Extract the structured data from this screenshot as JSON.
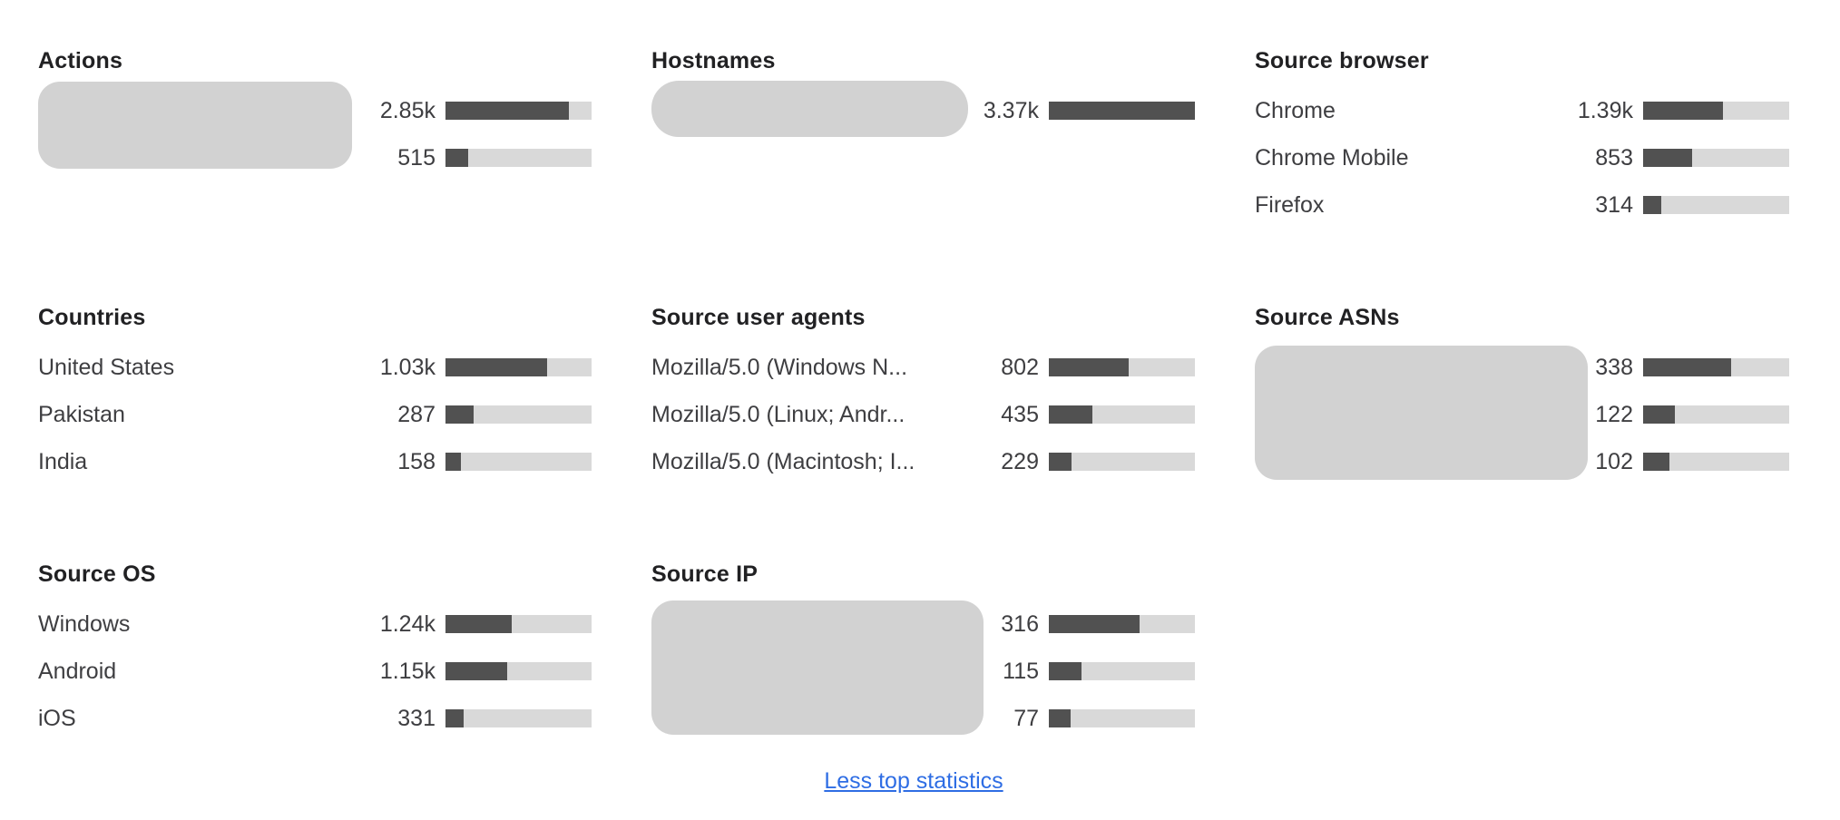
{
  "colors": {
    "background": "#ffffff",
    "title_text": "#212123",
    "label_text": "#3e3e41",
    "bar_fill": "#515151",
    "bar_track": "#d9d9d9",
    "redaction_box": "#d2d2d2",
    "link": "#2e6de4"
  },
  "footer": {
    "toggle_link_label": "Less top statistics"
  },
  "chart_data": [
    {
      "type": "bar",
      "title": "Actions",
      "labels_redacted": true,
      "rows": [
        {
          "label": "",
          "value": 2850,
          "value_display": "2.85k",
          "percent": 84.7
        },
        {
          "label": "",
          "value": 515,
          "value_display": "515",
          "percent": 15.3
        }
      ]
    },
    {
      "type": "bar",
      "title": "Hostnames",
      "labels_redacted": true,
      "rows": [
        {
          "label": "",
          "value": 3370,
          "value_display": "3.37k",
          "percent": 100
        }
      ]
    },
    {
      "type": "bar",
      "title": "Source browser",
      "labels_redacted": false,
      "rows": [
        {
          "label": "Chrome",
          "value": 1390,
          "value_display": "1.39k",
          "percent": 54.4
        },
        {
          "label": "Chrome Mobile",
          "value": 853,
          "value_display": "853",
          "percent": 33.4
        },
        {
          "label": "Firefox",
          "value": 314,
          "value_display": "314",
          "percent": 12.3
        }
      ]
    },
    {
      "type": "bar",
      "title": "Countries",
      "labels_redacted": false,
      "rows": [
        {
          "label": "United States",
          "value": 1030,
          "value_display": "1.03k",
          "percent": 69.8
        },
        {
          "label": "Pakistan",
          "value": 287,
          "value_display": "287",
          "percent": 19.5
        },
        {
          "label": "India",
          "value": 158,
          "value_display": "158",
          "percent": 10.7
        }
      ]
    },
    {
      "type": "bar",
      "title": "Source user agents",
      "labels_redacted": false,
      "rows": [
        {
          "label": "Mozilla/5.0 (Windows N...",
          "value": 802,
          "value_display": "802",
          "percent": 54.7
        },
        {
          "label": "Mozilla/5.0 (Linux; Andr...",
          "value": 435,
          "value_display": "435",
          "percent": 29.7
        },
        {
          "label": "Mozilla/5.0 (Macintosh; I...",
          "value": 229,
          "value_display": "229",
          "percent": 15.6
        }
      ]
    },
    {
      "type": "bar",
      "title": "Source ASNs",
      "labels_redacted": true,
      "rows": [
        {
          "label": "",
          "value": 338,
          "value_display": "338",
          "percent": 60.1
        },
        {
          "label": "",
          "value": 122,
          "value_display": "122",
          "percent": 21.7
        },
        {
          "label": "",
          "value": 102,
          "value_display": "102",
          "percent": 18.1
        }
      ]
    },
    {
      "type": "bar",
      "title": "Source OS",
      "labels_redacted": false,
      "rows": [
        {
          "label": "Windows",
          "value": 1240,
          "value_display": "1.24k",
          "percent": 45.6
        },
        {
          "label": "Android",
          "value": 1150,
          "value_display": "1.15k",
          "percent": 42.3
        },
        {
          "label": "iOS",
          "value": 331,
          "value_display": "331",
          "percent": 12.2
        }
      ]
    },
    {
      "type": "bar",
      "title": "Source IP",
      "labels_redacted": true,
      "rows": [
        {
          "label": "",
          "value": 316,
          "value_display": "316",
          "percent": 62.2
        },
        {
          "label": "",
          "value": 115,
          "value_display": "115",
          "percent": 22.6
        },
        {
          "label": "",
          "value": 77,
          "value_display": "77",
          "percent": 15.2
        }
      ]
    }
  ]
}
